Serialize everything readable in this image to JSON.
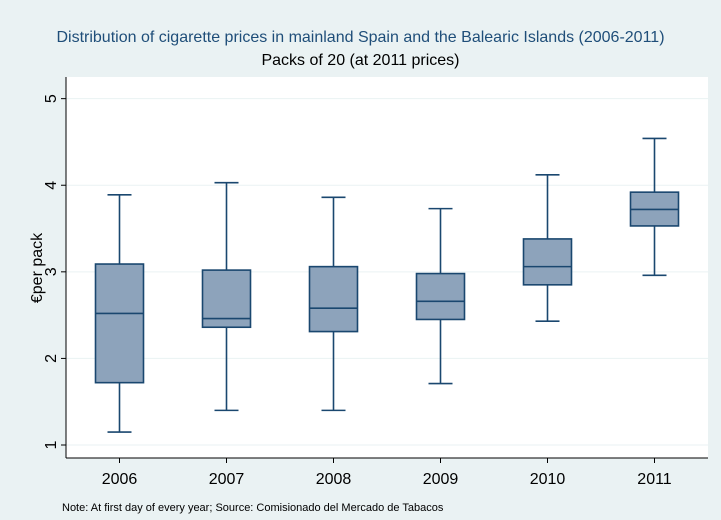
{
  "chart_data": {
    "type": "boxplot",
    "title": "Distribution of cigarette prices in mainland Spain and the Balearic Islands (2006-2011)",
    "subtitle": "Packs of 20 (at 2011 prices)",
    "ylabel": "€per pack",
    "xlabel": "",
    "note": "Note: At first day of every year; Source: Comisionado del Mercado de Tabacos",
    "ylim": [
      0.85,
      5.25
    ],
    "yticks": [
      "1",
      "2",
      "3",
      "4",
      "5"
    ],
    "grid": true,
    "box_fill": "#8da3bb",
    "line_color": "#1a476f",
    "categories": [
      "2006",
      "2007",
      "2008",
      "2009",
      "2010",
      "2011"
    ],
    "boxes": [
      {
        "min": 1.15,
        "q1": 1.72,
        "median": 2.52,
        "q3": 3.09,
        "max": 3.89
      },
      {
        "min": 1.4,
        "q1": 2.36,
        "median": 2.46,
        "q3": 3.02,
        "max": 4.03
      },
      {
        "min": 1.4,
        "q1": 2.31,
        "median": 2.58,
        "q3": 3.06,
        "max": 3.86
      },
      {
        "min": 1.71,
        "q1": 2.45,
        "median": 2.66,
        "q3": 2.98,
        "max": 3.73
      },
      {
        "min": 2.43,
        "q1": 2.85,
        "median": 3.06,
        "q3": 3.38,
        "max": 4.12
      },
      {
        "min": 2.96,
        "q1": 3.53,
        "median": 3.72,
        "q3": 3.92,
        "max": 4.54
      }
    ]
  }
}
